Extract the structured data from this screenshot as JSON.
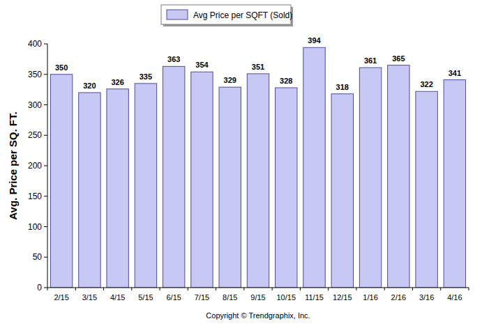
{
  "chart_data": {
    "type": "bar",
    "y_label": "Avg. Price per SQ. FT.",
    "categories": [
      "2/15",
      "3/15",
      "4/15",
      "5/15",
      "6/15",
      "7/15",
      "8/15",
      "9/15",
      "10/15",
      "11/15",
      "12/15",
      "1/16",
      "2/16",
      "3/16",
      "4/16"
    ],
    "series": [
      {
        "name": "Avg Price per SQFT (Sold)",
        "color": "#c8c8f5",
        "values": [
          350,
          320,
          326,
          335,
          363,
          354,
          329,
          351,
          328,
          394,
          318,
          361,
          365,
          322,
          341
        ]
      }
    ],
    "ylim": [
      0,
      400
    ],
    "yticks": [
      0,
      50,
      100,
      150,
      200,
      250,
      300,
      350,
      400
    ],
    "grid": false,
    "legend": "top",
    "data_labels": true,
    "annotations": [
      "Copyright © Trendgraphix, Inc."
    ]
  }
}
